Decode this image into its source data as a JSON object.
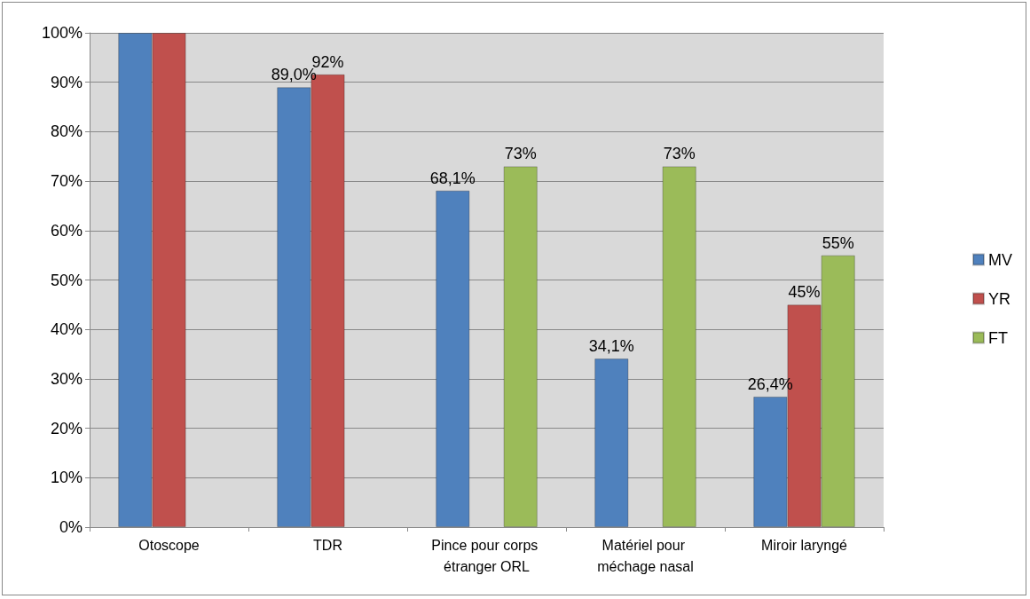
{
  "chart_data": {
    "type": "bar",
    "categories": [
      "Otoscope",
      "TDR",
      "Pince pour corps étranger ORL",
      "Matériel pour méchage nasal",
      "Miroir laryngé"
    ],
    "series": [
      {
        "name": "MV",
        "color": "#4f81bd",
        "values": [
          100,
          89.0,
          68.1,
          34.1,
          26.4
        ],
        "value_labels": [
          null,
          "89,0%",
          "68,1%",
          "34,1%",
          "26,4%"
        ]
      },
      {
        "name": "YR",
        "color": "#c0504d",
        "values": [
          100,
          91.6,
          null,
          null,
          45
        ],
        "value_labels": [
          null,
          "92%",
          null,
          null,
          "45%"
        ]
      },
      {
        "name": "FT",
        "color": "#9bbb59",
        "values": [
          null,
          null,
          73,
          73,
          55
        ],
        "value_labels": [
          null,
          null,
          "73%",
          "73%",
          "55%"
        ]
      }
    ],
    "ylim": [
      0,
      100
    ],
    "yticks": [
      {
        "value": 0,
        "label": "0%"
      },
      {
        "value": 10,
        "label": "10%"
      },
      {
        "value": 20,
        "label": "20%"
      },
      {
        "value": 30,
        "label": "30%"
      },
      {
        "value": 40,
        "label": "40%"
      },
      {
        "value": 50,
        "label": "50%"
      },
      {
        "value": 60,
        "label": "60%"
      },
      {
        "value": 70,
        "label": "70%"
      },
      {
        "value": 80,
        "label": "80%"
      },
      {
        "value": 90,
        "label": "90%"
      },
      {
        "value": 100,
        "label": "100%"
      }
    ],
    "grid": "y",
    "legend": "right"
  }
}
